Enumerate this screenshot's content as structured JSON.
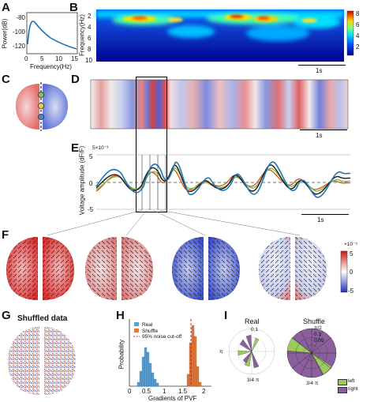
{
  "panels": {
    "A": "A",
    "B": "B",
    "C": "C",
    "D": "D",
    "E": "E",
    "F": "F",
    "G": "G",
    "H": "H",
    "I": "I"
  },
  "panelA": {
    "ylabel": "Power(dB)",
    "xlabel": "Frequency(Hz)",
    "yticks": [
      "-80",
      "-100",
      "-120"
    ],
    "xticks": [
      "0",
      "5",
      "10",
      "15"
    ]
  },
  "panelB": {
    "ylabel": "Frequency(Hz)",
    "yticks": [
      "2",
      "4",
      "6",
      "8",
      "10"
    ],
    "colorbar_ticks": [
      "8",
      "6",
      "4",
      "2"
    ],
    "scalebar": "1s"
  },
  "panelD": {
    "scalebar": "1s"
  },
  "panelE": {
    "exponent": "5×10⁻³",
    "ylabel": "Voltage amplitude (dF/F)",
    "yticks": [
      "5",
      "0",
      "-5"
    ],
    "scalebar": "1s"
  },
  "panelF": {
    "colorbar_exponent": "×10⁻³",
    "colorbar_ticks": [
      "5",
      "0",
      "-5"
    ]
  },
  "panelG": {
    "title": "Shuffled data"
  },
  "panelH": {
    "ylabel": "Probability",
    "xlabel": "Gradients of PVF",
    "xticks": [
      "0",
      "0.5",
      "1",
      "1.5",
      "2"
    ],
    "legend": [
      "Real",
      "Shuffle",
      "95% noise cut-off"
    ]
  },
  "panelI": {
    "real_title": "Real",
    "shuffle_title": "Shuffle",
    "real_radial": "0.1",
    "shuffle_radial": [
      "0.1",
      "0.05"
    ],
    "angle_top": "π/2",
    "angle_left": "π",
    "angle_bottom": "3/4 π",
    "legend": [
      "left",
      "right"
    ]
  },
  "colors": {
    "jet_dark": "#00008f",
    "jet_blue": "#0050ff",
    "jet_cyan": "#00e0ff",
    "jet_yellow": "#ffd000",
    "jet_red": "#d00000",
    "real_hist": "#5a9fd4",
    "shuffle_hist": "#e07a3c",
    "cutoff": "#d62728",
    "left_green": "#9acd5b",
    "right_purple": "#8b5e9e"
  }
}
